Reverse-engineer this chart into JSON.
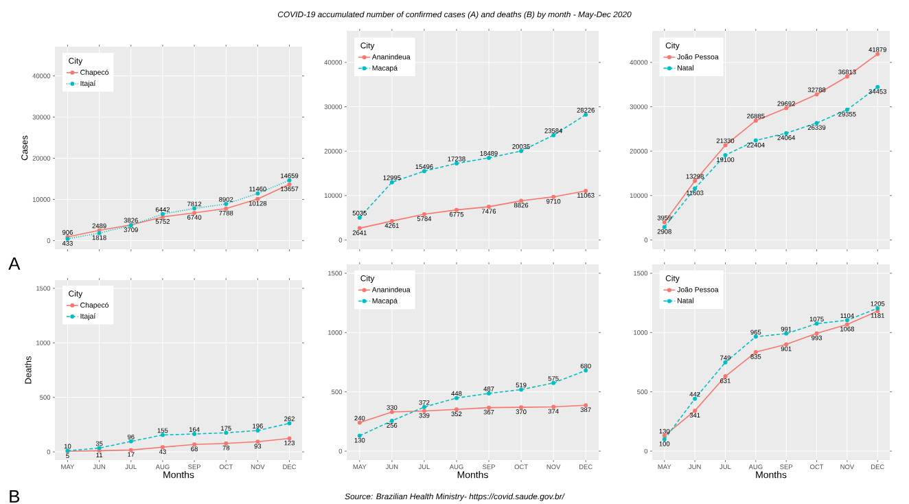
{
  "chart_data": [
    {
      "type": "line",
      "ylabel": "Cases",
      "legend_title": "City",
      "annotations": [
        "A"
      ],
      "categories": [
        null,
        null,
        null,
        null,
        null,
        null,
        null,
        null
      ],
      "tick_labels": "y",
      "ylim": [
        -2100,
        47100
      ],
      "yticks": [
        0,
        10000,
        20000,
        30000,
        40000
      ],
      "grid": true,
      "legend": "top left",
      "marker": "circle",
      "data_labels": true,
      "series": [
        {
          "name": "Chapecó",
          "color": "#f8766d",
          "line_style": "solid",
          "values": [
            906,
            2489,
            3826,
            5752,
            6740,
            7788,
            10128,
            13657
          ]
        },
        {
          "name": "Itajaí",
          "color": "#00bfc4",
          "line_style": "dotted",
          "values": [
            433,
            1818,
            3709,
            6442,
            7812,
            8902,
            11460,
            14659
          ]
        }
      ]
    },
    {
      "type": "line",
      "title": "COVID-19 accumulated number of confirmed cases (A) and deaths (B) by month - May-Dec 2020",
      "legend_title": "City",
      "categories": [
        null,
        null,
        null,
        null,
        null,
        null,
        null,
        null
      ],
      "tick_labels": "y",
      "ylim": [
        -2100,
        47100
      ],
      "yticks": [
        0,
        10000,
        20000,
        30000,
        40000
      ],
      "grid": true,
      "legend": "top left",
      "marker": "circle",
      "data_labels": true,
      "series": [
        {
          "name": "Ananindeua",
          "color": "#f8766d",
          "line_style": "solid",
          "values": [
            2641,
            4261,
            5784,
            6775,
            7476,
            8826,
            9710,
            11063
          ]
        },
        {
          "name": "Macapá",
          "color": "#00bfc4",
          "line_style": "dashed",
          "values": [
            5035,
            12995,
            15496,
            17238,
            18489,
            20035,
            23584,
            28226
          ]
        }
      ]
    },
    {
      "type": "line",
      "legend_title": "City",
      "categories": [
        null,
        null,
        null,
        null,
        null,
        null,
        null,
        null
      ],
      "tick_labels": "y",
      "ylim": [
        -2100,
        47100
      ],
      "yticks": [
        0,
        10000,
        20000,
        30000,
        40000
      ],
      "grid": true,
      "legend": "top left",
      "marker": "circle",
      "data_labels": true,
      "series": [
        {
          "name": "João Pessoa",
          "color": "#f8766d",
          "line_style": "solid",
          "values": [
            3959,
            13298,
            21330,
            26885,
            29692,
            32788,
            36813,
            41879
          ]
        },
        {
          "name": "Natal",
          "color": "#00bfc4",
          "line_style": "dashed",
          "values": [
            2908,
            11603,
            19100,
            22404,
            24064,
            26339,
            29355,
            34453
          ]
        }
      ]
    },
    {
      "type": "line",
      "xlabel": "Months",
      "ylabel": "Deaths",
      "legend_title": "City",
      "annotations": [
        "B"
      ],
      "categories": [
        "MAY",
        "JUN",
        "JUL",
        "AUG",
        "SEP",
        "OCT",
        "NOV",
        "DEC"
      ],
      "ylim": [
        -75,
        1575
      ],
      "yticks": [
        0,
        500,
        1000,
        1500
      ],
      "grid": true,
      "legend": "top left",
      "marker": "circle",
      "data_labels": true,
      "series": [
        {
          "name": "Chapecó",
          "color": "#f8766d",
          "line_style": "solid",
          "values": [
            5,
            11,
            17,
            43,
            68,
            78,
            93,
            123
          ]
        },
        {
          "name": "Itajaí",
          "color": "#00bfc4",
          "line_style": "dashed",
          "values": [
            10,
            35,
            96,
            155,
            164,
            175,
            196,
            262
          ]
        }
      ]
    },
    {
      "type": "line",
      "xlabel": "Months",
      "legend_title": "City",
      "annotations": [
        "Source: Brazilian Health Ministry- https://covid.saude.gov.br/"
      ],
      "categories": [
        "MAY",
        "JUN",
        "JUL",
        "AUG",
        "SEP",
        "OCT",
        "NOV",
        "DEC"
      ],
      "ylim": [
        -75,
        1575
      ],
      "yticks": [
        0,
        500,
        1000,
        1500
      ],
      "grid": true,
      "legend": "top left",
      "marker": "circle",
      "data_labels": true,
      "series": [
        {
          "name": "Ananindeua",
          "color": "#f8766d",
          "line_style": "solid",
          "values": [
            240,
            330,
            339,
            352,
            367,
            370,
            374,
            387
          ]
        },
        {
          "name": "Macapá",
          "color": "#00bfc4",
          "line_style": "dashed",
          "values": [
            130,
            256,
            372,
            448,
            487,
            519,
            575,
            680
          ]
        }
      ]
    },
    {
      "type": "line",
      "xlabel": "Months",
      "legend_title": "City",
      "categories": [
        "MAY",
        "JUN",
        "JUL",
        "AUG",
        "SEP",
        "OCT",
        "NOV",
        "DEC"
      ],
      "ylim": [
        -75,
        1575
      ],
      "yticks": [
        0,
        500,
        1000,
        1500
      ],
      "grid": true,
      "legend": "top left",
      "marker": "circle",
      "data_labels": true,
      "series": [
        {
          "name": "João Pessoa",
          "color": "#f8766d",
          "line_style": "solid",
          "values": [
            130,
            341,
            631,
            835,
            901,
            993,
            1068,
            1181
          ]
        },
        {
          "name": "Natal",
          "color": "#00bfc4",
          "line_style": "dashed",
          "values": [
            100,
            442,
            749,
            965,
            991,
            1075,
            1104,
            1205
          ]
        }
      ]
    }
  ]
}
